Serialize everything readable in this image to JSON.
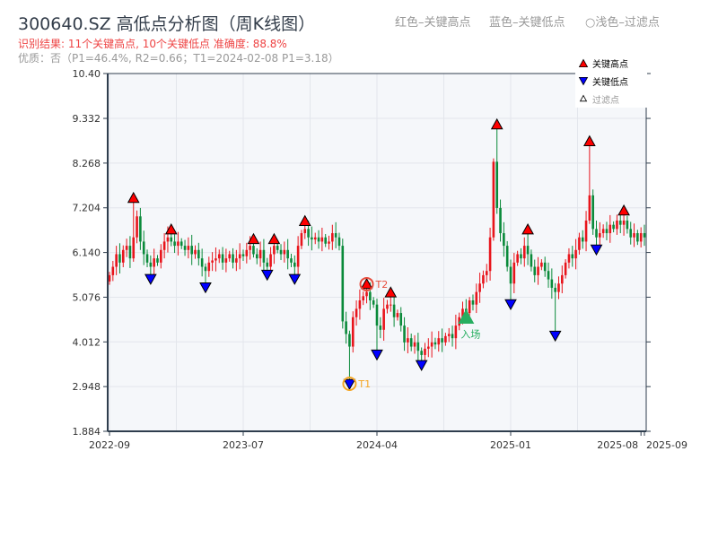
{
  "header": {
    "title": "300640.SZ 高低点分析图（周K线图）",
    "result": "识别结果: 11个关键高点, 10个关键低点  准确度: 88.8%",
    "quality": "优质：否（P1=46.4%, R2=0.66；T1=2024-02-08 P1=3.18）",
    "hint_high": "红色–关键高点",
    "hint_low": "蓝色–关键低点",
    "hint_filtered": "○浅色–过滤点"
  },
  "legend": {
    "high": "关键高点",
    "low": "关键低点",
    "filtered": "过滤点"
  },
  "colors": {
    "up": "#e8141b",
    "down": "#0a8a3a",
    "high": "#ff0000",
    "low": "#0000ff",
    "t1": "#f5a623",
    "t2": "#e74c3c",
    "entry": "#27ae60",
    "bg": "#f5f7fa"
  },
  "chart_data": {
    "type": "candlestick",
    "title": "300640.SZ 高低点分析图（周K线图）",
    "ylim": [
      1.884,
      10.4
    ],
    "yticks": [
      "1.884",
      "2.948",
      "4.012",
      "5.076",
      "6.140",
      "7.204",
      "8.268",
      "9.332",
      "10.40"
    ],
    "xticks": [
      {
        "label": "2022-09",
        "week": 0
      },
      {
        "label": "2023-07",
        "week": 39
      },
      {
        "label": "2024-04",
        "week": 78
      },
      {
        "label": "2025-01",
        "week": 117
      },
      {
        "label": "2025-08",
        "week": 155
      },
      {
        "label": "2025-09",
        "week": 156
      }
    ],
    "weeks": 157,
    "closes": [
      5.6,
      5.8,
      6.1,
      5.9,
      6.2,
      6.3,
      6.0,
      6.5,
      7.0,
      6.4,
      6.1,
      5.9,
      5.8,
      6.0,
      5.9,
      6.2,
      6.4,
      6.5,
      6.4,
      6.3,
      6.4,
      6.3,
      6.2,
      6.3,
      6.1,
      6.2,
      6.0,
      5.8,
      5.7,
      5.9,
      5.95,
      6.0,
      6.1,
      5.9,
      6.0,
      6.1,
      5.9,
      6.0,
      6.1,
      6.05,
      6.2,
      6.3,
      6.1,
      6.0,
      6.2,
      5.9,
      5.8,
      6.1,
      6.3,
      6.2,
      6.1,
      6.2,
      6.0,
      5.9,
      5.8,
      6.3,
      6.6,
      6.7,
      6.5,
      6.45,
      6.5,
      6.4,
      6.5,
      6.35,
      6.4,
      6.6,
      6.5,
      6.3,
      4.5,
      4.2,
      3.9,
      4.6,
      4.8,
      5.0,
      5.1,
      5.2,
      5.0,
      4.9,
      4.4,
      4.3,
      4.8,
      4.9,
      4.9,
      4.6,
      4.7,
      4.4,
      4.0,
      4.1,
      3.9,
      4.0,
      3.8,
      3.7,
      3.85,
      3.9,
      4.0,
      3.95,
      4.1,
      4.0,
      4.15,
      4.2,
      4.1,
      4.4,
      4.6,
      4.8,
      4.7,
      5.0,
      4.9,
      5.2,
      5.4,
      5.6,
      5.7,
      6.5,
      8.3,
      7.2,
      6.6,
      6.3,
      5.8,
      5.4,
      5.9,
      6.1,
      6.0,
      6.3,
      6.1,
      5.8,
      5.6,
      5.8,
      5.9,
      5.7,
      5.5,
      5.3,
      5.2,
      5.4,
      5.6,
      5.9,
      6.1,
      6.0,
      6.2,
      6.5,
      6.4,
      6.9,
      7.5,
      6.7,
      6.5,
      6.6,
      6.7,
      6.6,
      6.8,
      6.7,
      6.9,
      6.8,
      6.9,
      6.7,
      6.5,
      6.6,
      6.4,
      6.6,
      6.5
    ],
    "key_highs": [
      {
        "week": 7,
        "price": 7.35
      },
      {
        "week": 18,
        "price": 6.6
      },
      {
        "week": 42,
        "price": 6.37
      },
      {
        "week": 48,
        "price": 6.37
      },
      {
        "week": 57,
        "price": 6.8
      },
      {
        "week": 75,
        "price": 5.3
      },
      {
        "week": 82,
        "price": 5.1
      },
      {
        "week": 113,
        "price": 9.1
      },
      {
        "week": 122,
        "price": 6.6
      },
      {
        "week": 140,
        "price": 8.7
      },
      {
        "week": 150,
        "price": 7.05
      }
    ],
    "key_lows": [
      {
        "week": 12,
        "price": 5.6
      },
      {
        "week": 28,
        "price": 5.4
      },
      {
        "week": 46,
        "price": 5.7
      },
      {
        "week": 54,
        "price": 5.6
      },
      {
        "week": 70,
        "price": 3.1
      },
      {
        "week": 78,
        "price": 3.8
      },
      {
        "week": 91,
        "price": 3.55
      },
      {
        "week": 117,
        "price": 5.0
      },
      {
        "week": 130,
        "price": 4.25
      },
      {
        "week": 142,
        "price": 6.3
      }
    ],
    "annotations": [
      {
        "label": "T1",
        "week": 70,
        "price": 3.1,
        "kind": "t1"
      },
      {
        "label": "T2",
        "week": 75,
        "price": 5.3,
        "kind": "t2"
      },
      {
        "label": "入场",
        "week": 104,
        "price": 4.6,
        "kind": "entry"
      }
    ]
  }
}
